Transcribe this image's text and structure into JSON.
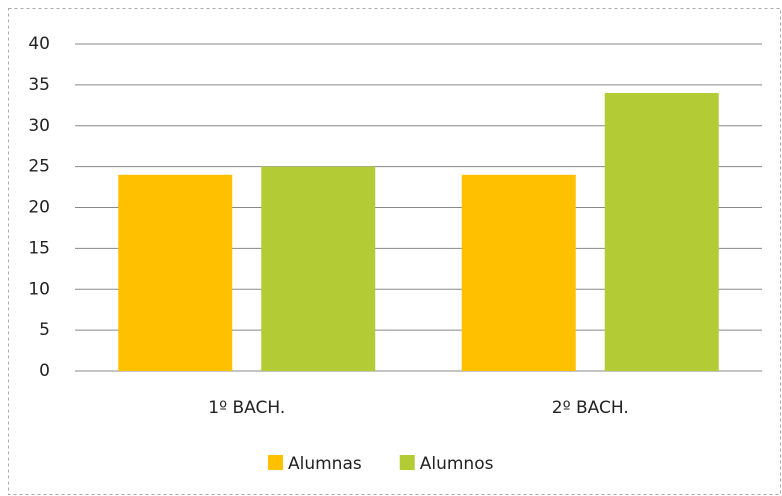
{
  "chart_data": {
    "type": "bar",
    "categories": [
      "1º BACH.",
      "2º BACH."
    ],
    "series": [
      {
        "name": "Alumnas",
        "color": "#ffc000",
        "values": [
          24,
          24
        ]
      },
      {
        "name": "Alumnos",
        "color": "#b3cb35",
        "values": [
          25,
          34
        ]
      }
    ],
    "ylim": [
      0,
      40
    ],
    "yticks": [
      0,
      5,
      10,
      15,
      20,
      25,
      30,
      35,
      40
    ],
    "grid": true,
    "legend": "bottom"
  }
}
